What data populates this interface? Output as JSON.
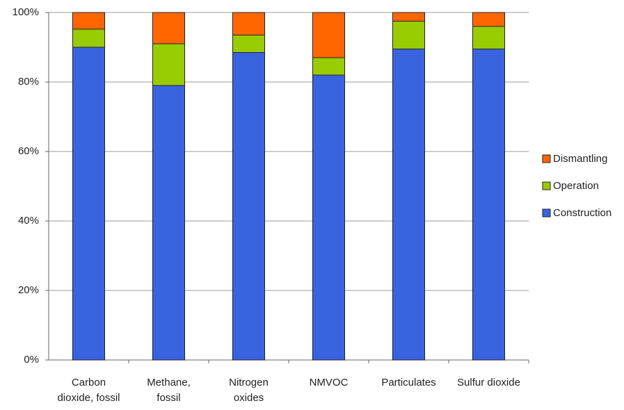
{
  "chart_data": {
    "type": "stacked-bar-100",
    "categories": [
      "Carbon dioxide, fossil",
      "Methane, fossil",
      "Nitrogen oxides",
      "NMVOC",
      "Particulates",
      "Sulfur dioxide"
    ],
    "series": [
      {
        "name": "Construction",
        "color": "#3a63e0",
        "values": [
          90,
          79,
          88.5,
          82,
          89.5,
          89.5
        ]
      },
      {
        "name": "Operation",
        "color": "#99cc00",
        "values": [
          5.2,
          12,
          5,
          5,
          8,
          6.5
        ]
      },
      {
        "name": "Dismantling",
        "color": "#ff6600",
        "values": [
          4.8,
          9,
          6.5,
          13,
          2.5,
          4
        ]
      }
    ],
    "ylim": [
      0,
      100
    ],
    "yticks": [
      {
        "value": 0,
        "label": "0%"
      },
      {
        "value": 20,
        "label": "20%"
      },
      {
        "value": 40,
        "label": "40%"
      },
      {
        "value": 60,
        "label": "60%"
      },
      {
        "value": 80,
        "label": "80%"
      },
      {
        "value": 100,
        "label": "100%"
      }
    ],
    "grid": true,
    "legend": "right"
  }
}
